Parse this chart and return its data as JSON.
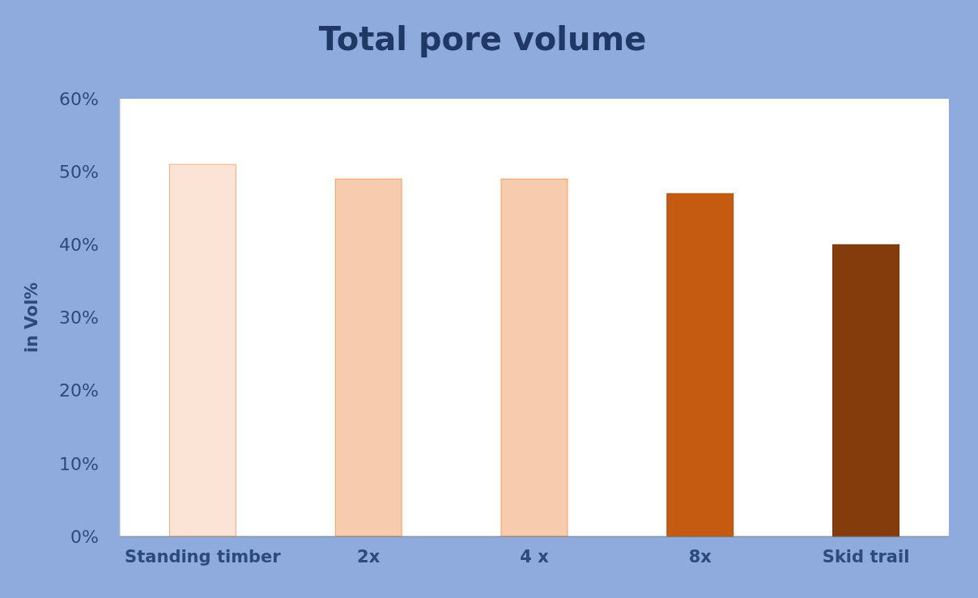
{
  "chart_data": {
    "type": "bar",
    "title": "Total pore volume",
    "ylabel": "in Vol%",
    "categories": [
      "Standing timber",
      "2x",
      "4 x",
      "8x",
      "Skid trail"
    ],
    "values": [
      51,
      49,
      49,
      47,
      40
    ],
    "colors": [
      "#fbe3d5",
      "#f7cbad",
      "#f7cbad",
      "#c55a11",
      "#843c0c"
    ],
    "ylim": [
      0,
      60
    ],
    "yticks": [
      {
        "value": 0,
        "label": "0%"
      },
      {
        "value": 10,
        "label": "10%"
      },
      {
        "value": 20,
        "label": "20%"
      },
      {
        "value": 30,
        "label": "30%"
      },
      {
        "value": 40,
        "label": "40%"
      },
      {
        "value": 50,
        "label": "50%"
      },
      {
        "value": 60,
        "label": "60%"
      }
    ],
    "grid": false
  }
}
